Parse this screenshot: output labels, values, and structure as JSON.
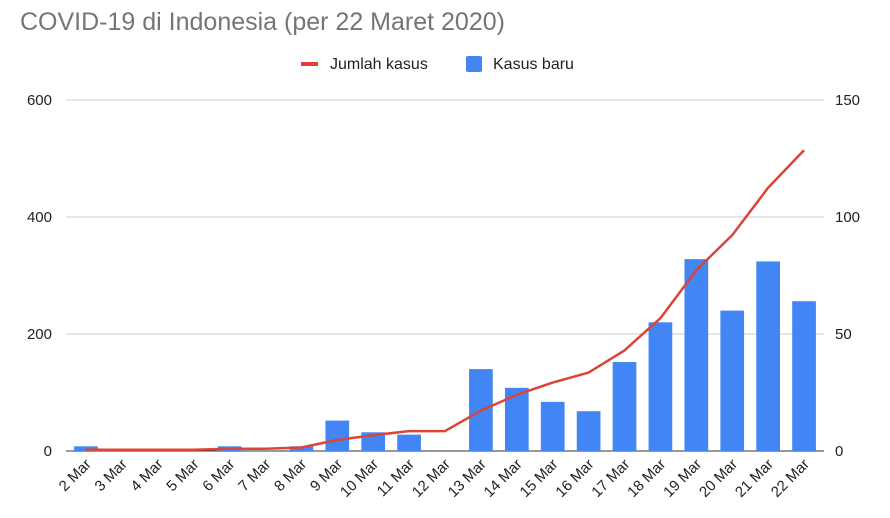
{
  "chart_data": {
    "type": "bar",
    "title": "COVID-19 di Indonesia (per 22 Maret 2020)",
    "legend_position": "top",
    "grid": true,
    "categories": [
      "2 Mar",
      "3 Mar",
      "4 Mar",
      "5 Mar",
      "6 Mar",
      "7 Mar",
      "8 Mar",
      "9 Mar",
      "10 Mar",
      "11 Mar",
      "12 Mar",
      "13 Mar",
      "14 Mar",
      "15 Mar",
      "16 Mar",
      "17 Mar",
      "18 Mar",
      "19 Mar",
      "20 Mar",
      "21 Mar",
      "22 Mar"
    ],
    "left_axis": {
      "ylim": [
        0,
        600
      ],
      "ticks": [
        0,
        200,
        400,
        600
      ]
    },
    "right_axis": {
      "ylim": [
        0,
        150
      ],
      "ticks": [
        0,
        50,
        100,
        150
      ]
    },
    "series": [
      {
        "name": "Jumlah kasus",
        "type": "line",
        "axis": "left",
        "color": "#db4437",
        "values": [
          2,
          2,
          2,
          2,
          4,
          4,
          6,
          19,
          27,
          34,
          34,
          69,
          96,
          117,
          134,
          172,
          227,
          309,
          369,
          450,
          514
        ]
      },
      {
        "name": "Kasus baru",
        "type": "bar",
        "axis": "right",
        "color": "#4285f4",
        "values": [
          2,
          0,
          0,
          0,
          2,
          0,
          2,
          13,
          8,
          7,
          0,
          35,
          27,
          21,
          17,
          38,
          55,
          82,
          60,
          81,
          64
        ]
      }
    ]
  }
}
